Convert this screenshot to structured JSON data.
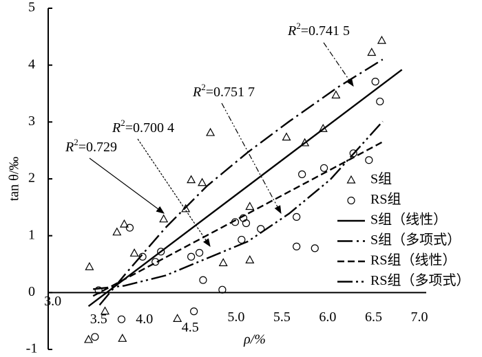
{
  "chart_data": {
    "type": "scatter",
    "x_label": "ρ/%",
    "y_label": "tan θ/‰",
    "xlim": [
      2.95,
      7.0
    ],
    "xticks": [
      {
        "value": 3,
        "label": "3.0"
      },
      3.5,
      {
        "value": 4,
        "label": "4.0"
      },
      4.5,
      {
        "value": 5,
        "label": "5.0"
      },
      5.5,
      {
        "value": 6,
        "label": "6.0"
      },
      6.5,
      {
        "value": 7,
        "label": "7.0"
      }
    ],
    "ylim": [
      -1,
      5
    ],
    "yticks": [
      -1,
      0,
      1,
      2,
      3,
      4,
      5
    ],
    "legend": "lower right",
    "series": [
      {
        "name": "S组",
        "type": "scatter",
        "marker": "triangle",
        "color": "#000000",
        "x": [
          3.4,
          3.57,
          3.39,
          3.7,
          3.78,
          3.76,
          3.89,
          4.21,
          4.36,
          4.45,
          4.51,
          4.63,
          4.72,
          4.86,
          5.15,
          5.15,
          5.55,
          5.75,
          5.95,
          6.09,
          6.48,
          6.59
        ],
        "values": [
          0.45,
          -0.33,
          -0.83,
          1.06,
          1.2,
          -0.81,
          0.69,
          1.29,
          -0.46,
          1.47,
          1.98,
          1.93,
          2.81,
          0.52,
          1.51,
          0.57,
          2.73,
          2.63,
          2.88,
          3.47,
          4.22,
          4.43
        ]
      },
      {
        "name": "RS组",
        "type": "scatter",
        "marker": "circle",
        "color": "#000000",
        "x": [
          3.46,
          3.5,
          3.75,
          3.84,
          3.98,
          4.12,
          4.18,
          4.54,
          4.51,
          4.6,
          4.64,
          4.85,
          4.99,
          5.06,
          5.08,
          5.11,
          5.27,
          5.66,
          5.66,
          5.72,
          5.86,
          5.96,
          6.28,
          6.52,
          6.57,
          6.45
        ],
        "values": [
          -0.78,
          0.04,
          -0.47,
          1.14,
          0.63,
          0.54,
          0.72,
          -0.33,
          0.63,
          0.7,
          0.22,
          0.05,
          1.24,
          0.93,
          1.31,
          1.22,
          1.12,
          1.33,
          0.81,
          2.08,
          0.78,
          2.19,
          2.45,
          3.71,
          3.36,
          2.33
        ]
      },
      {
        "name": "S组（线性）",
        "type": "line",
        "dash": "solid",
        "color": "#000000",
        "x": [
          3.39,
          6.81
        ],
        "values": [
          -0.24,
          3.92
        ]
      },
      {
        "name": "S组（多项式）",
        "type": "line",
        "dash": "dashdot",
        "color": "#000000",
        "x": [
          3.51,
          3.81,
          4.23,
          4.68,
          5.13,
          5.58,
          6.11,
          6.6
        ],
        "values": [
          -0.22,
          0.36,
          1.14,
          1.87,
          2.47,
          3.01,
          3.61,
          4.1
        ]
      },
      {
        "name": "RS组（线性）",
        "type": "line",
        "dash": "dashed",
        "color": "#000000",
        "x": [
          3.44,
          6.6
        ],
        "values": [
          -0.06,
          2.65
        ]
      },
      {
        "name": "RS组（多项式）",
        "type": "line",
        "dash": "dashdotdot",
        "color": "#000000",
        "x": [
          3.44,
          3.78,
          4.23,
          4.68,
          5.13,
          5.58,
          6.03,
          6.6
        ],
        "values": [
          0.06,
          0.12,
          0.3,
          0.6,
          0.9,
          1.39,
          1.99,
          3.01
        ]
      }
    ],
    "annotations": [
      {
        "prefix": "R",
        "sup": "2",
        "text": "=0.729"
      },
      {
        "prefix": "R",
        "sup": "2",
        "text": "=0.700 4"
      },
      {
        "prefix": "R",
        "sup": "2",
        "text": "=0.751 7"
      },
      {
        "prefix": "R",
        "sup": "2",
        "text": "=0.741 5"
      }
    ]
  }
}
